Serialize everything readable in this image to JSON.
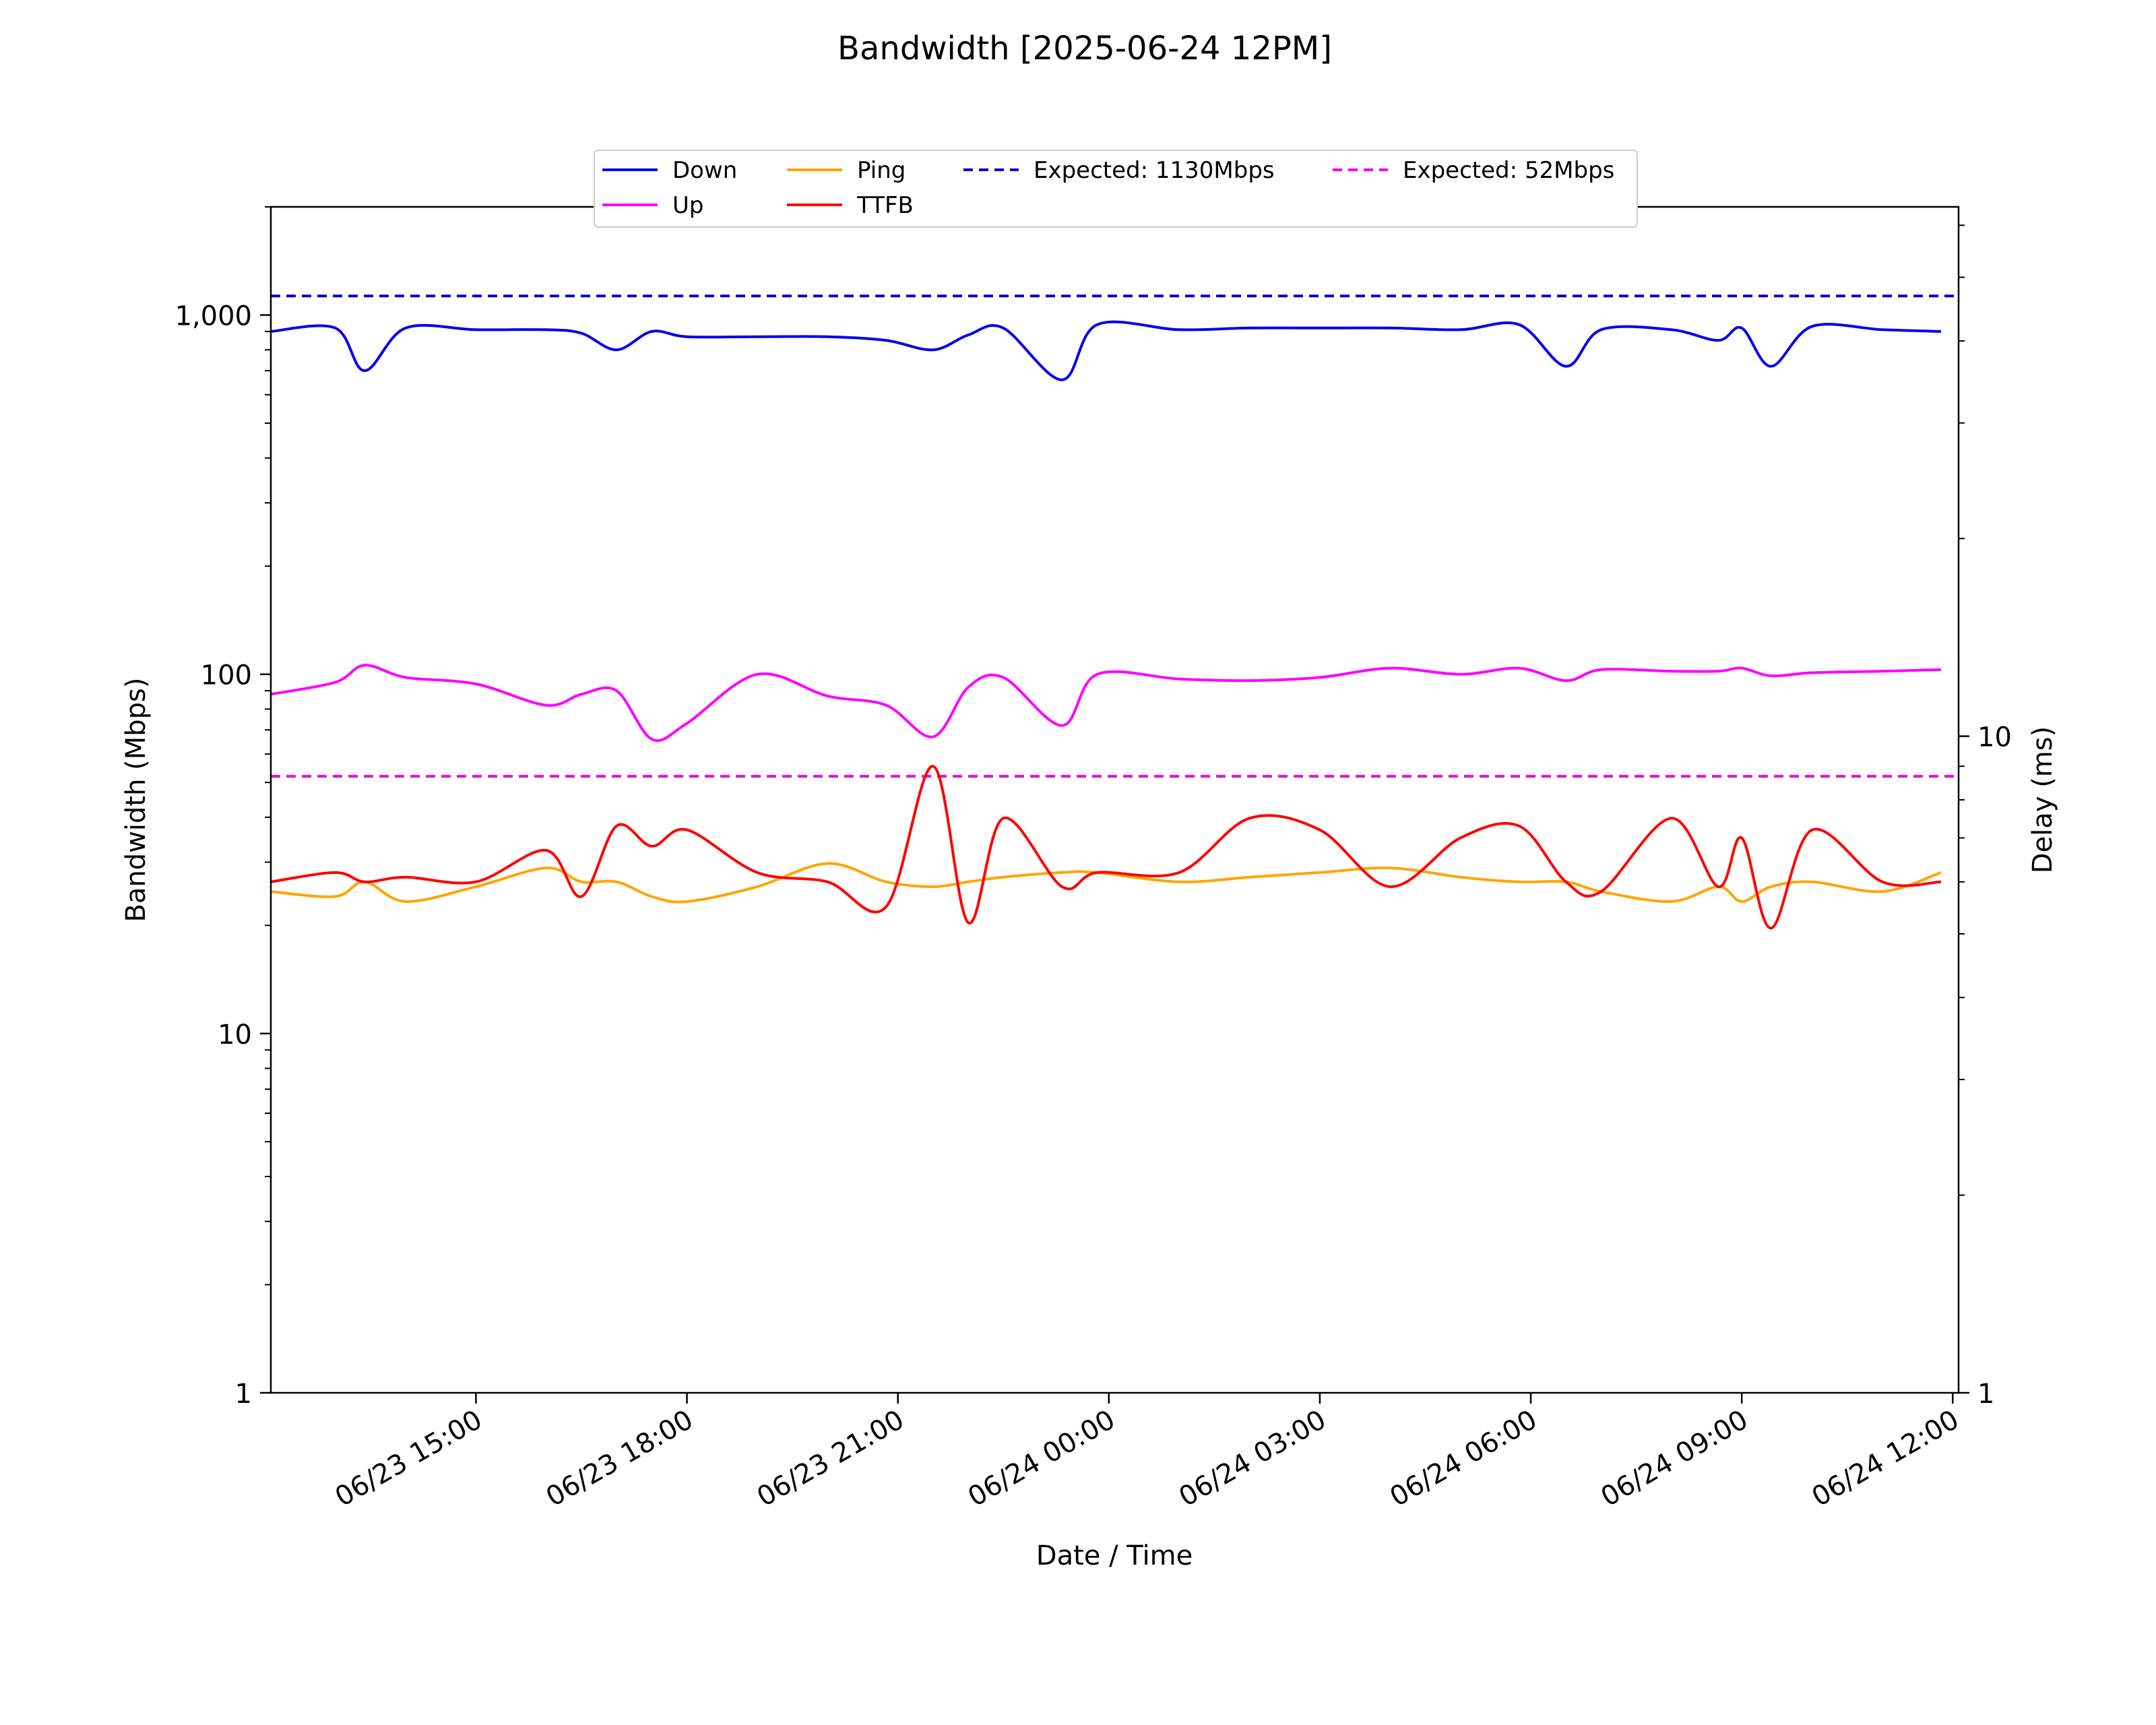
{
  "chart_data": {
    "type": "line",
    "title": "Bandwidth [2025-06-24 12PM]",
    "xlabel": "Date / Time",
    "ylabel": "Bandwidth (Mbps)",
    "y2label": "Delay (ms)",
    "yscale": "log",
    "y2scale": "log",
    "ylim": [
      1,
      2000
    ],
    "y2lim": [
      1,
      64
    ],
    "xlim": [
      "2025-06-23 12:05",
      "2025-06-24 12:05"
    ],
    "x_ticks": [
      "06/23 15:00",
      "06/23 18:00",
      "06/23 21:00",
      "06/24 00:00",
      "06/24 03:00",
      "06/24 06:00",
      "06/24 09:00",
      "06/24 12:00"
    ],
    "y_ticks": [
      "1",
      "10",
      "100",
      "1,000"
    ],
    "y2_ticks": [
      "1",
      "10"
    ],
    "grid": false,
    "legend_position": "top-center",
    "legend": [
      "Down",
      "Ping",
      "Expected: 1130Mbps",
      "Expected: 52Mbps",
      "Up",
      "TTFB"
    ],
    "colors": {
      "down": "#0000ee",
      "up": "#ff00ff",
      "ping": "#ffa500",
      "ttfb": "#ff0000",
      "expected_down": "#0000cc",
      "expected_up": "#ee00ee"
    },
    "expected": [
      {
        "name": "Expected: 1130Mbps",
        "value": 1130,
        "axis": "left"
      },
      {
        "name": "Expected: 52Mbps",
        "value": 52,
        "axis": "left"
      }
    ],
    "x": [
      "2025-06-23 12:05",
      "2025-06-23 13:00",
      "2025-06-23 13:25",
      "2025-06-23 14:00",
      "2025-06-23 15:00",
      "2025-06-23 16:00",
      "2025-06-23 16:30",
      "2025-06-23 17:00",
      "2025-06-23 17:30",
      "2025-06-23 18:00",
      "2025-06-23 19:00",
      "2025-06-23 20:00",
      "2025-06-23 20:50",
      "2025-06-23 21:30",
      "2025-06-23 22:00",
      "2025-06-23 22:30",
      "2025-06-23 23:20",
      "2025-06-23 23:50",
      "2025-06-24 01:00",
      "2025-06-24 02:00",
      "2025-06-24 03:00",
      "2025-06-24 04:00",
      "2025-06-24 05:00",
      "2025-06-24 05:50",
      "2025-06-24 06:30",
      "2025-06-24 07:00",
      "2025-06-24 08:00",
      "2025-06-24 08:40",
      "2025-06-24 09:00",
      "2025-06-24 09:25",
      "2025-06-24 10:00",
      "2025-06-24 11:00",
      "2025-06-24 11:50"
    ],
    "series": [
      {
        "name": "Down",
        "axis": "left",
        "values": [
          900,
          920,
          700,
          920,
          910,
          910,
          890,
          800,
          900,
          870,
          870,
          870,
          850,
          800,
          880,
          920,
          660,
          940,
          910,
          920,
          920,
          920,
          910,
          940,
          720,
          910,
          910,
          850,
          920,
          720,
          930,
          910,
          900
        ]
      },
      {
        "name": "Up",
        "axis": "left",
        "values": [
          88,
          95,
          106,
          98,
          94,
          82,
          88,
          90,
          66,
          73,
          100,
          87,
          82,
          67,
          92,
          98,
          72,
          100,
          97,
          96,
          98,
          104,
          100,
          104,
          96,
          103,
          102,
          102,
          104,
          99,
          101,
          102,
          103
        ]
      },
      {
        "name": "Ping",
        "axis": "right",
        "values": [
          5.8,
          5.7,
          6.0,
          5.6,
          5.9,
          6.3,
          6.0,
          6.0,
          5.7,
          5.6,
          5.9,
          6.4,
          6.0,
          5.9,
          6.0,
          6.1,
          6.2,
          6.2,
          6.0,
          6.1,
          6.2,
          6.3,
          6.1,
          6.0,
          6.0,
          5.8,
          5.6,
          5.9,
          5.6,
          5.9,
          6.0,
          5.8,
          6.2
        ]
      },
      {
        "name": "TTFB",
        "axis": "right",
        "values": [
          6.0,
          6.2,
          6.0,
          6.1,
          6.0,
          6.7,
          5.7,
          7.3,
          6.8,
          7.2,
          6.2,
          6.0,
          5.5,
          9.0,
          5.2,
          7.5,
          5.9,
          6.2,
          6.2,
          7.5,
          7.2,
          5.9,
          7.0,
          7.3,
          6.0,
          5.8,
          7.5,
          5.9,
          7.0,
          5.1,
          7.2,
          6.0,
          6.0
        ]
      }
    ]
  }
}
